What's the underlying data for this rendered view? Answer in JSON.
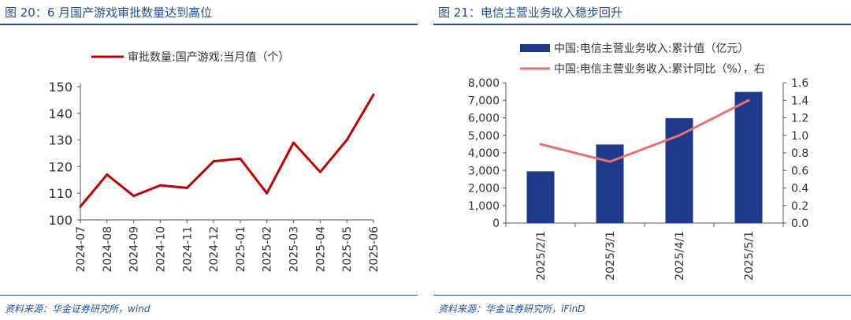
{
  "panels": [
    {
      "title": "图 20：6 月国产游戏审批数量达到高位",
      "source": "资料来源：华金证券研究所，wind"
    },
    {
      "title": "图 21：电信主营业务收入稳步回升",
      "source": "资料来源：华金证券研究所，iFinD"
    }
  ],
  "chart_data": [
    {
      "type": "line",
      "x": [
        "2024-07",
        "2024-08",
        "2024-09",
        "2024-10",
        "2024-11",
        "2024-12",
        "2025-01",
        "2025-02",
        "2025-03",
        "2025-04",
        "2025-05",
        "2025-06"
      ],
      "series": [
        {
          "name": "审批数量:国产游戏:当月值（个）",
          "values": [
            105,
            117,
            109,
            113,
            112,
            122,
            123,
            110,
            129,
            118,
            130,
            147
          ],
          "color": "#c00000"
        }
      ],
      "ylim": [
        100,
        150
      ],
      "yticks": [
        "100",
        "110",
        "120",
        "130",
        "140",
        "150"
      ],
      "grid": false,
      "legend": "top"
    },
    {
      "type": "bar",
      "categories": [
        "2025/2/1",
        "2025/3/1",
        "2025/4/1",
        "2025/5/1"
      ],
      "series": [
        {
          "name": "中国:电信主营业务收入:累计值（亿元）",
          "values": [
            2950,
            4480,
            5980,
            7480
          ],
          "color": "#1f3a8a",
          "axis": "left"
        },
        {
          "name": "中国:电信主营业务收入:累计同比（%），右",
          "values": [
            0.9,
            0.7,
            1.0,
            1.4
          ],
          "color": "#e87070",
          "axis": "right",
          "type": "line"
        }
      ],
      "ylim": [
        0,
        8000
      ],
      "yticks": [
        "0",
        "1,000",
        "2,000",
        "3,000",
        "4,000",
        "5,000",
        "6,000",
        "7,000",
        "8,000"
      ],
      "y2lim": [
        0,
        1.6
      ],
      "y2ticks": [
        "0.0",
        "0.2",
        "0.4",
        "0.6",
        "0.8",
        "1.0",
        "1.2",
        "1.4",
        "1.6"
      ],
      "grid": false,
      "legend": "top"
    }
  ]
}
